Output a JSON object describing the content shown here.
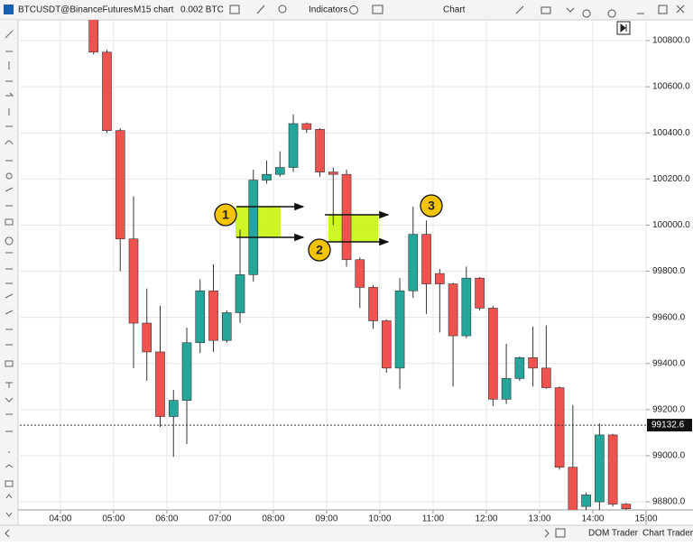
{
  "toolbar": {
    "symbol": "BTCUSDT@BinanceFutures",
    "interval": "M15 chart",
    "quantity": "0.002 BTC",
    "indicators": "Indicators",
    "window_title": "Chart"
  },
  "bottom_bar": {
    "dom_trader": "DOM Trader",
    "chart_trader": "Chart Trader"
  },
  "chart_data": {
    "type": "candlestick",
    "x": [
      4.5,
      4.75,
      5,
      5.25,
      5.5,
      5.75,
      6,
      6.25,
      6.5,
      6.75,
      7,
      7.25,
      7.5,
      7.75,
      8,
      8.25,
      8.5,
      8.75,
      9,
      9.25,
      9.5,
      9.75,
      10,
      10.25,
      10.5,
      10.75,
      11,
      11.25,
      11.5,
      11.75,
      12,
      12.25,
      12.5,
      12.75,
      13,
      13.25,
      13.5,
      13.75,
      14,
      14.25,
      14.5
    ],
    "open": [
      100900,
      100750,
      100410,
      99940,
      99575,
      99450,
      99170,
      99240,
      99490,
      99715,
      99500,
      99620,
      99785,
      100195,
      100220,
      100250,
      100440,
      100415,
      100230,
      100220,
      99850,
      99730,
      99585,
      99380,
      99715,
      99960,
      99790,
      99745,
      99520,
      99770,
      99640,
      99245,
      99335,
      99425,
      99380,
      99295,
      98950,
      98780,
      98800,
      99090,
      98790
    ],
    "high": [
      100950,
      100760,
      100420,
      100125,
      99725,
      99650,
      99285,
      99555,
      99765,
      99830,
      99630,
      99980,
      100240,
      100280,
      100320,
      100480,
      100445,
      100420,
      100250,
      100240,
      99860,
      99740,
      99590,
      99770,
      100080,
      100020,
      99810,
      99750,
      99820,
      99775,
      99650,
      99485,
      99430,
      99560,
      99565,
      99300,
      99220,
      98840,
      99140,
      99095,
      98795
    ],
    "low": [
      100740,
      100400,
      99800,
      99380,
      99325,
      99125,
      98995,
      99050,
      99445,
      99450,
      99490,
      99575,
      99755,
      100180,
      100210,
      100230,
      100400,
      100210,
      100000,
      99820,
      99640,
      99550,
      99360,
      99290,
      99685,
      99615,
      99535,
      99300,
      99510,
      99630,
      99215,
      99225,
      99325,
      99300,
      99290,
      98940,
      98740,
      98760,
      98760,
      98780,
      98760
    ],
    "close": [
      100750,
      100410,
      99940,
      99575,
      99450,
      99170,
      99240,
      99490,
      99715,
      99500,
      99620,
      99785,
      100195,
      100220,
      100250,
      100440,
      100415,
      100230,
      100220,
      99850,
      99730,
      99585,
      99380,
      99715,
      99960,
      99745,
      99745,
      99520,
      99770,
      99640,
      99245,
      99335,
      99425,
      99380,
      99295,
      98950,
      98760,
      98830,
      99090,
      98790,
      98770
    ],
    "up_color": "#26a69a",
    "down_color": "#ef5350",
    "xlim": [
      3.24,
      15.0
    ],
    "xticks": [
      {
        "value": 4,
        "label": "04:00"
      },
      {
        "value": 5,
        "label": "05:00"
      },
      {
        "value": 6,
        "label": "06:00"
      },
      {
        "value": 7,
        "label": "07:00"
      },
      {
        "value": 8,
        "label": "08:00"
      },
      {
        "value": 9,
        "label": "09:00"
      },
      {
        "value": 10,
        "label": "10:00"
      },
      {
        "value": 11,
        "label": "11:00"
      },
      {
        "value": 12,
        "label": "12:00"
      },
      {
        "value": 13,
        "label": "13:00"
      },
      {
        "value": 14,
        "label": "14:00"
      },
      {
        "value": 15,
        "label": "15:00"
      }
    ],
    "ylim": [
      98765,
      100890
    ],
    "yticks": [
      {
        "value": 98800,
        "label": "98800.0"
      },
      {
        "value": 99000,
        "label": "99000.0"
      },
      {
        "value": 99200,
        "label": "99200.0"
      },
      {
        "value": 99400,
        "label": "99400.0"
      },
      {
        "value": 99600,
        "label": "99600.0"
      },
      {
        "value": 99800,
        "label": "99800.0"
      },
      {
        "value": 100000,
        "label": "100000.0"
      },
      {
        "value": 100200,
        "label": "100200.0"
      },
      {
        "value": 100400,
        "label": "100400.0"
      },
      {
        "value": 100600,
        "label": "100600.0"
      },
      {
        "value": 100800,
        "label": "100800.0"
      }
    ],
    "grid": true,
    "last_price": {
      "value": 99132.6,
      "label": "99132.6"
    },
    "annotations": [
      "1",
      "2",
      "3"
    ]
  }
}
